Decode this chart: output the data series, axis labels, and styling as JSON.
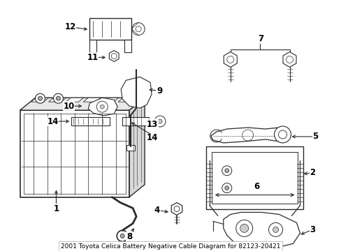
{
  "title": "2001 Toyota Celica Battery Negative Cable Diagram for 82123-20421",
  "bg_color": "#ffffff",
  "line_color": "#2a2a2a",
  "text_color": "#000000",
  "label_fontsize": 8.5,
  "fig_width": 4.89,
  "fig_height": 3.6,
  "dpi": 100
}
